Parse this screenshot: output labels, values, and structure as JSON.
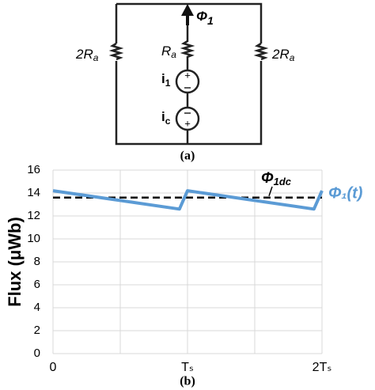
{
  "diagram": {
    "labels": {
      "flux": {
        "base": "Φ",
        "sub": "1"
      },
      "left_resistor": {
        "base": "2R",
        "sub": "a"
      },
      "middle_resistor": {
        "base": "R",
        "sub": "a"
      },
      "right_resistor": {
        "base": "2R",
        "sub": "a"
      },
      "source_1": {
        "base": "i",
        "sub": "1"
      },
      "source_c": {
        "base": "i",
        "sub": "c"
      }
    },
    "caption": "(a)"
  },
  "chart_data": {
    "type": "line",
    "caption": "(b)",
    "ylabel": "Flux (μWb)",
    "x": [
      0,
      0.94,
      1.0,
      1.94,
      2.0
    ],
    "series": [
      {
        "name": "Φ₁(t)",
        "color": "#5b9bd5",
        "values": [
          14.2,
          12.6,
          14.2,
          12.6,
          14.2
        ]
      }
    ],
    "hline": {
      "value": 13.6,
      "label": {
        "base": "Φ",
        "sub": "1dc"
      },
      "color": "#000000"
    },
    "xlim": [
      0,
      2
    ],
    "xticks": [
      0,
      {
        "value": 0.5,
        "label": null
      },
      {
        "value": 1,
        "label": "Tₛ"
      },
      {
        "value": 1.5,
        "label": null
      },
      {
        "value": 2,
        "label": "2Tₛ"
      }
    ],
    "ylim": [
      0,
      16
    ],
    "yticks": [
      0,
      2,
      4,
      6,
      8,
      10,
      12,
      14,
      16
    ],
    "grid": true
  }
}
